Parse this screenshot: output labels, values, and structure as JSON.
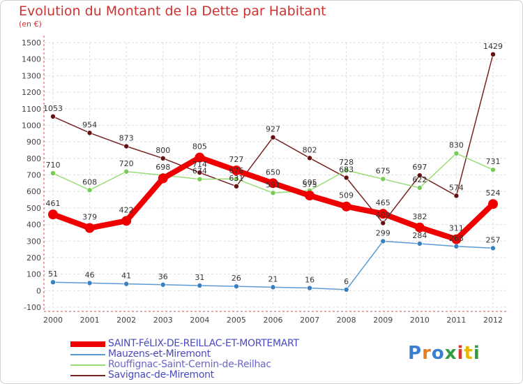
{
  "header": {
    "title": "Evolution du Montant de la Dette par Habitant",
    "unit": "(en €)"
  },
  "chart_data": {
    "type": "line",
    "x": [
      2000,
      2001,
      2002,
      2003,
      2004,
      2005,
      2006,
      2007,
      2008,
      2009,
      2010,
      2011,
      2012
    ],
    "ylim": [
      -100,
      1500
    ],
    "yticks": [
      -100,
      0,
      100,
      200,
      300,
      400,
      500,
      600,
      700,
      800,
      900,
      1000,
      1100,
      1200,
      1300,
      1400,
      1500
    ],
    "grid": true,
    "legend_position": "bottom",
    "series": [
      {
        "name": "SAINT-FéLIX-DE-REILLAC-ET-MORTEMART",
        "color": "#ee0000",
        "marker": "#ee0000",
        "thick": true,
        "values": [
          461,
          379,
          422,
          679,
          805,
          727,
          650,
          575,
          509,
          465,
          382,
          311,
          524
        ],
        "labels": [
          "461",
          "379",
          "422",
          "",
          "805",
          "727",
          "650",
          "575",
          "509",
          "465",
          "382",
          "311",
          "524"
        ]
      },
      {
        "name": "Mauzens-et-Miremont",
        "color": "#5b9bd5",
        "marker": "#3a80c0",
        "thick": false,
        "values": [
          51,
          46,
          41,
          36,
          31,
          26,
          21,
          16,
          6,
          299,
          284,
          268,
          257
        ],
        "labels": [
          "51",
          "46",
          "41",
          "36",
          "31",
          "26",
          "21",
          "16",
          "6",
          "299",
          "284",
          "268",
          "257"
        ]
      },
      {
        "name": "Rouffignac-Saint-Cernin-de-Reilhac",
        "color": "#99dd77",
        "marker": "#77cc55",
        "thick": false,
        "values": [
          710,
          608,
          720,
          698,
          674,
          676,
          591,
          605,
          728,
          675,
          622,
          830,
          731
        ],
        "labels": [
          "710",
          "608",
          "720",
          "698",
          "674",
          "676",
          "591",
          "605",
          "728",
          "675",
          "622",
          "830",
          "731"
        ]
      },
      {
        "name": "Savignac-de-Miremont",
        "color": "#772222",
        "marker": "#661111",
        "thick": false,
        "values": [
          1053,
          954,
          873,
          800,
          714,
          631,
          927,
          802,
          683,
          409,
          697,
          574,
          1429
        ],
        "labels": [
          "1053",
          "954",
          "873",
          "800",
          "714",
          "631",
          "927",
          "802",
          "683",
          "409",
          "697",
          "574",
          "1429"
        ]
      }
    ]
  },
  "legend": {
    "items": [
      {
        "label": "SAINT-FéLIX-DE-REILLAC-ET-MORTEMART",
        "color": "#ee0000"
      },
      {
        "label": "Mauzens-et-Miremont",
        "color": "#5b9bd5"
      },
      {
        "label": "Rouffignac-Saint-Cernin-de-Reilhac",
        "color": "#99dd77"
      },
      {
        "label": "Savignac-de-Miremont",
        "color": "#772222"
      }
    ]
  },
  "logo": {
    "text": "Proxiti",
    "colors": [
      "#3a7fd0",
      "#e67e22",
      "#3a7fd0",
      "#2e9e3e",
      "#e0352a",
      "#e6b800",
      "#2e9e3e"
    ]
  }
}
